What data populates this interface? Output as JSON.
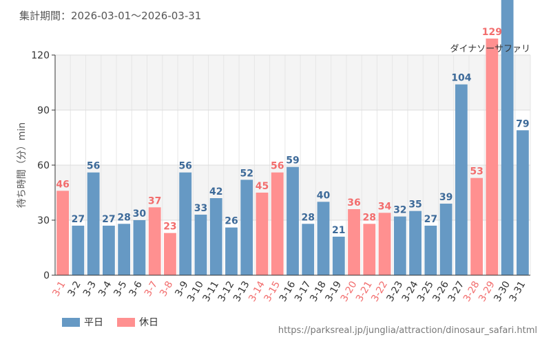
{
  "header": {
    "period_label": "集計期間：2026-03-01〜2026-03-31"
  },
  "legend": {
    "weekday_label": "平日",
    "holiday_label": "休日"
  },
  "source": {
    "url": "https://parksreal.jp/junglia/attraction/dinosaur_safari.html"
  },
  "colors": {
    "weekday": "#6699c4",
    "holiday": "#ff9090",
    "weekday_label": "#3d6a99",
    "holiday_label": "#f26d6d",
    "band": "#f4f4f4"
  },
  "chart_data": {
    "type": "bar",
    "title": "ダイナソーサファリ",
    "ylabel": "待ち時間（分）min",
    "xlabel": "",
    "ylim": [
      0,
      120
    ],
    "yticks": [
      0,
      30,
      60,
      90,
      120
    ],
    "categories": [
      "3-1",
      "3-2",
      "3-3",
      "3-4",
      "3-5",
      "3-6",
      "3-7",
      "3-8",
      "3-9",
      "3-10",
      "3-11",
      "3-12",
      "3-13",
      "3-14",
      "3-15",
      "3-16",
      "3-17",
      "3-18",
      "3-19",
      "3-20",
      "3-21",
      "3-22",
      "3-23",
      "3-24",
      "3-25",
      "3-26",
      "3-27",
      "3-28",
      "3-29",
      "3-30",
      "3-31"
    ],
    "values": [
      46,
      27,
      56,
      27,
      28,
      30,
      37,
      23,
      56,
      33,
      42,
      26,
      52,
      45,
      56,
      59,
      28,
      40,
      21,
      36,
      28,
      34,
      32,
      35,
      27,
      39,
      104,
      53,
      129,
      null,
      79
    ],
    "day_type": [
      "holiday",
      "weekday",
      "weekday",
      "weekday",
      "weekday",
      "weekday",
      "holiday",
      "holiday",
      "weekday",
      "weekday",
      "weekday",
      "weekday",
      "weekday",
      "holiday",
      "holiday",
      "weekday",
      "weekday",
      "weekday",
      "weekday",
      "holiday",
      "holiday",
      "holiday",
      "weekday",
      "weekday",
      "weekday",
      "weekday",
      "weekday",
      "holiday",
      "holiday",
      "weekday",
      "weekday"
    ],
    "legend_position": "bottom-left",
    "grid": true
  }
}
